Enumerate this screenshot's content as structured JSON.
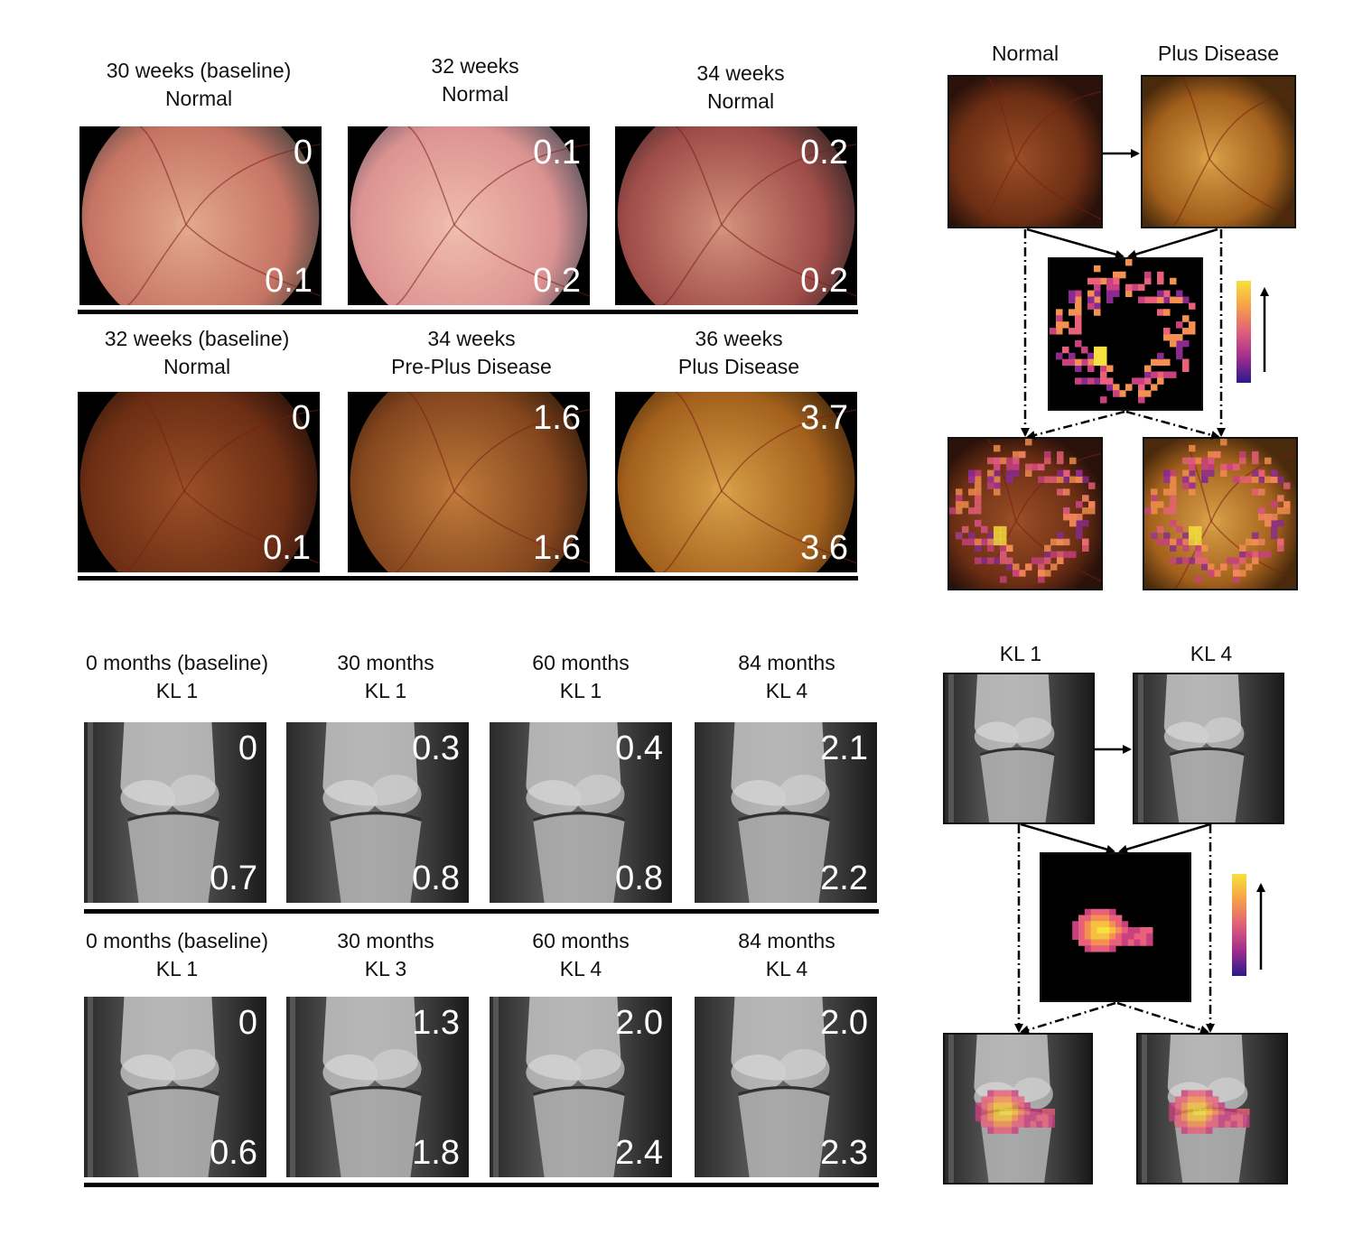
{
  "retina": {
    "row1": {
      "items": [
        {
          "caption1": "30 weeks (baseline)",
          "caption2": "Normal",
          "top_score": "0",
          "bottom_score": "0.1",
          "colors": [
            "#e2a88e",
            "#c67464",
            "#4e4642"
          ]
        },
        {
          "caption1": "32 weeks",
          "caption2": "Normal",
          "top_score": "0.1",
          "bottom_score": "0.2",
          "colors": [
            "#f0bcae",
            "#dc9392",
            "#5e5660"
          ]
        },
        {
          "caption1": "34 weeks",
          "caption2": "Normal",
          "top_score": "0.2",
          "bottom_score": "0.2",
          "colors": [
            "#d4917c",
            "#9e4c48",
            "#3c2a2a"
          ]
        }
      ]
    },
    "row2": {
      "items": [
        {
          "caption1": "32 weeks (baseline)",
          "caption2": "Normal",
          "top_score": "0",
          "bottom_score": "0.1",
          "colors": [
            "#9a4e26",
            "#6c2e14",
            "#2a120a"
          ]
        },
        {
          "caption1": "34 weeks",
          "caption2": "Pre-Plus Disease",
          "top_score": "1.6",
          "bottom_score": "1.6",
          "colors": [
            "#c07a3a",
            "#84461e",
            "#3c200c"
          ]
        },
        {
          "caption1": "36 weeks",
          "caption2": "Plus Disease",
          "top_score": "3.7",
          "bottom_score": "3.6",
          "colors": [
            "#d8a048",
            "#a2601c",
            "#4a2a0c"
          ]
        }
      ]
    },
    "schematic": {
      "left_label": "Normal",
      "right_label": "Plus Disease"
    }
  },
  "knee": {
    "row1": {
      "items": [
        {
          "caption1": "0 months (baseline)",
          "caption2": "KL 1",
          "top_score": "0",
          "bottom_score": "0.7"
        },
        {
          "caption1": "30 months",
          "caption2": "KL 1",
          "top_score": "0.3",
          "bottom_score": "0.8"
        },
        {
          "caption1": "60 months",
          "caption2": "KL 1",
          "top_score": "0.4",
          "bottom_score": "0.8"
        },
        {
          "caption1": "84 months",
          "caption2": "KL 4",
          "top_score": "2.1",
          "bottom_score": "2.2"
        }
      ]
    },
    "row2": {
      "items": [
        {
          "caption1": "0 months (baseline)",
          "caption2": "KL 1",
          "top_score": "0",
          "bottom_score": "0.6"
        },
        {
          "caption1": "30 months",
          "caption2": "KL 3",
          "top_score": "1.3",
          "bottom_score": "1.8"
        },
        {
          "caption1": "60 months",
          "caption2": "KL 4",
          "top_score": "2.0",
          "bottom_score": "2.4"
        },
        {
          "caption1": "84 months",
          "caption2": "KL 4",
          "top_score": "2.0",
          "bottom_score": "2.3"
        }
      ]
    },
    "schematic": {
      "left_label": "KL 1",
      "right_label": "KL 4"
    }
  },
  "colors": {
    "heat_high": "#f7e13c",
    "heat_mid": "#e8607a",
    "heat_low": "#2a1a8a"
  }
}
